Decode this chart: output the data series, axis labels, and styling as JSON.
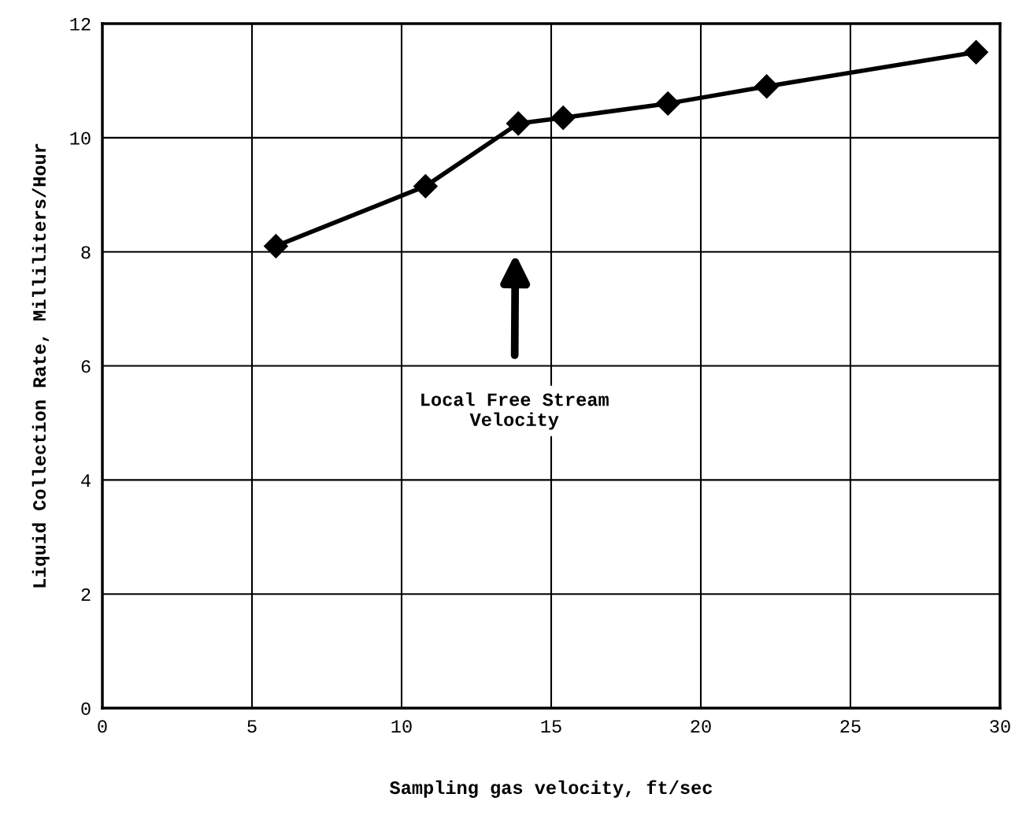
{
  "chart_data": {
    "type": "line",
    "xlabel": "Sampling gas velocity, ft/sec",
    "ylabel": "Liquid Collection Rate, Milliliters/Hour",
    "x": [
      5.8,
      10.8,
      13.9,
      15.4,
      18.9,
      22.2,
      29.2
    ],
    "series": [
      {
        "color": "#000000",
        "values": [
          8.1,
          9.15,
          10.25,
          10.35,
          10.6,
          10.9,
          11.5
        ]
      }
    ],
    "marker": "diamond",
    "line_style": "solid",
    "grid": true,
    "xlim": [
      0,
      30
    ],
    "xticks": [
      0,
      5,
      10,
      15,
      20,
      25,
      30
    ],
    "ylim": [
      0,
      12
    ],
    "yticks": [
      0,
      2,
      4,
      6,
      8,
      10,
      12
    ],
    "annotations": [
      "Local Free Stream\nVelocity"
    ]
  }
}
